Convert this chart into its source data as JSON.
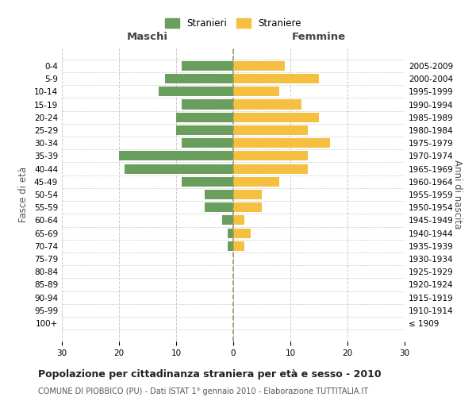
{
  "age_groups": [
    "100+",
    "95-99",
    "90-94",
    "85-89",
    "80-84",
    "75-79",
    "70-74",
    "65-69",
    "60-64",
    "55-59",
    "50-54",
    "45-49",
    "40-44",
    "35-39",
    "30-34",
    "25-29",
    "20-24",
    "15-19",
    "10-14",
    "5-9",
    "0-4"
  ],
  "birth_years": [
    "≤ 1909",
    "1910-1914",
    "1915-1919",
    "1920-1924",
    "1925-1929",
    "1930-1934",
    "1935-1939",
    "1940-1944",
    "1945-1949",
    "1950-1954",
    "1955-1959",
    "1960-1964",
    "1965-1969",
    "1970-1974",
    "1975-1979",
    "1980-1984",
    "1985-1989",
    "1990-1994",
    "1995-1999",
    "2000-2004",
    "2005-2009"
  ],
  "maschi": [
    0,
    0,
    0,
    0,
    0,
    0,
    1,
    1,
    2,
    5,
    5,
    9,
    19,
    20,
    9,
    10,
    10,
    9,
    13,
    12,
    9
  ],
  "femmine": [
    0,
    0,
    0,
    0,
    0,
    0,
    2,
    3,
    2,
    5,
    5,
    8,
    13,
    13,
    17,
    13,
    15,
    12,
    8,
    15,
    9
  ],
  "male_color": "#6a9e5c",
  "female_color": "#f5c040",
  "background_color": "#ffffff",
  "grid_color": "#cccccc",
  "title": "Popolazione per cittadinanza straniera per età e sesso - 2010",
  "subtitle": "COMUNE DI PIOBBICO (PU) - Dati ISTAT 1° gennaio 2010 - Elaborazione TUTTITALIA.IT",
  "xlabel_left": "Maschi",
  "xlabel_right": "Femmine",
  "ylabel_left": "Fasce di età",
  "ylabel_right": "Anni di nascita",
  "legend_male": "Stranieri",
  "legend_female": "Straniere",
  "xlim": 30,
  "bar_height": 0.75,
  "center_line_color": "#999966"
}
